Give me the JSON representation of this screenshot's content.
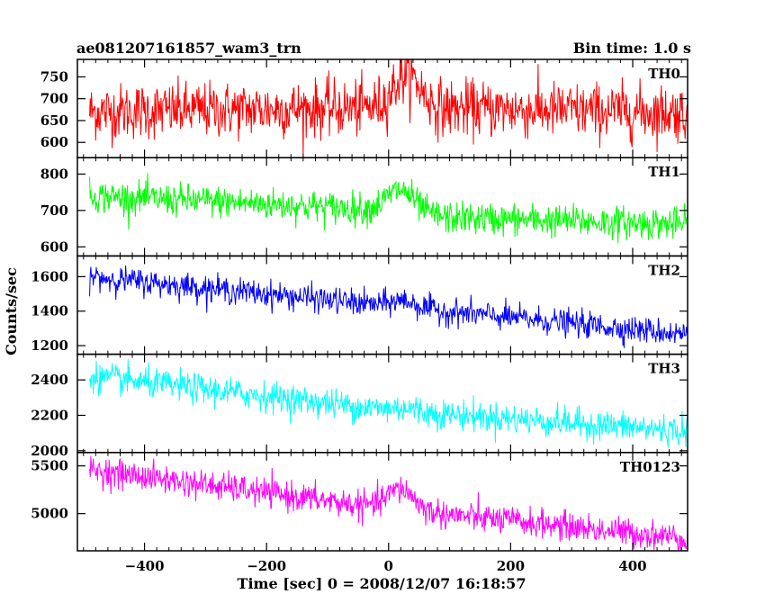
{
  "header": {
    "title": "ae081207161857_wam3_trn",
    "bin_time": "Bin time: 1.0 s"
  },
  "chart_data": {
    "type": "line",
    "title": "ae081207161857_wam3_trn",
    "xlabel": "Time [sec] 0 = 2008/12/07 16:18:57",
    "ylabel": "Counts/sec",
    "xlim": [
      -510,
      490
    ],
    "x_ticks": [
      -400,
      -200,
      0,
      200,
      400
    ],
    "x_tick_labels": [
      "−400",
      "−200",
      "0",
      "200",
      "400"
    ],
    "x_range": [
      -490,
      490
    ],
    "bin_time": 1.0,
    "series": [
      {
        "name": "TH0",
        "color": "#ff0000",
        "ylim": [
          565,
          790
        ],
        "y_ticks": [
          600,
          650,
          700,
          750
        ],
        "baseline": [
          [
            -490,
            670
          ],
          [
            20,
            680
          ],
          [
            490,
            668
          ]
        ],
        "noise_sd": 32,
        "flare": {
          "center": 30,
          "width": 22,
          "amplitude": 75
        }
      },
      {
        "name": "TH1",
        "color": "#00ff00",
        "ylim": [
          575,
          845
        ],
        "y_ticks": [
          600,
          700,
          800
        ],
        "baseline": [
          [
            -490,
            740
          ],
          [
            -200,
            718
          ],
          [
            0,
            700
          ],
          [
            100,
            680
          ],
          [
            490,
            662
          ]
        ],
        "noise_sd": 22,
        "flare": {
          "center": 20,
          "width": 22,
          "amplitude": 60
        }
      },
      {
        "name": "TH2",
        "color": "#0000ff",
        "ylim": [
          1150,
          1720
        ],
        "y_ticks": [
          1200,
          1400,
          1600
        ],
        "baseline": [
          [
            -490,
            1600
          ],
          [
            0,
            1430
          ],
          [
            490,
            1265
          ]
        ],
        "noise_sd": 38,
        "flare": {
          "center": 25,
          "width": 20,
          "amplitude": 40
        }
      },
      {
        "name": "TH3",
        "color": "#00ffff",
        "ylim": [
          1990,
          2545
        ],
        "y_ticks": [
          2000,
          2200,
          2400
        ],
        "baseline": [
          [
            -490,
            2420
          ],
          [
            0,
            2230
          ],
          [
            490,
            2110
          ]
        ],
        "noise_sd": 42,
        "flare": {
          "center": 25,
          "width": 20,
          "amplitude": 20
        }
      },
      {
        "name": "TH0123",
        "color": "#ff00ff",
        "ylim": [
          4610,
          5640
        ],
        "y_ticks": [
          5000,
          5500
        ],
        "baseline": [
          [
            -490,
            5460
          ],
          [
            0,
            5050
          ],
          [
            490,
            4740
          ]
        ],
        "noise_sd": 75,
        "flare": {
          "center": 20,
          "width": 22,
          "amplitude": 220
        }
      }
    ]
  }
}
